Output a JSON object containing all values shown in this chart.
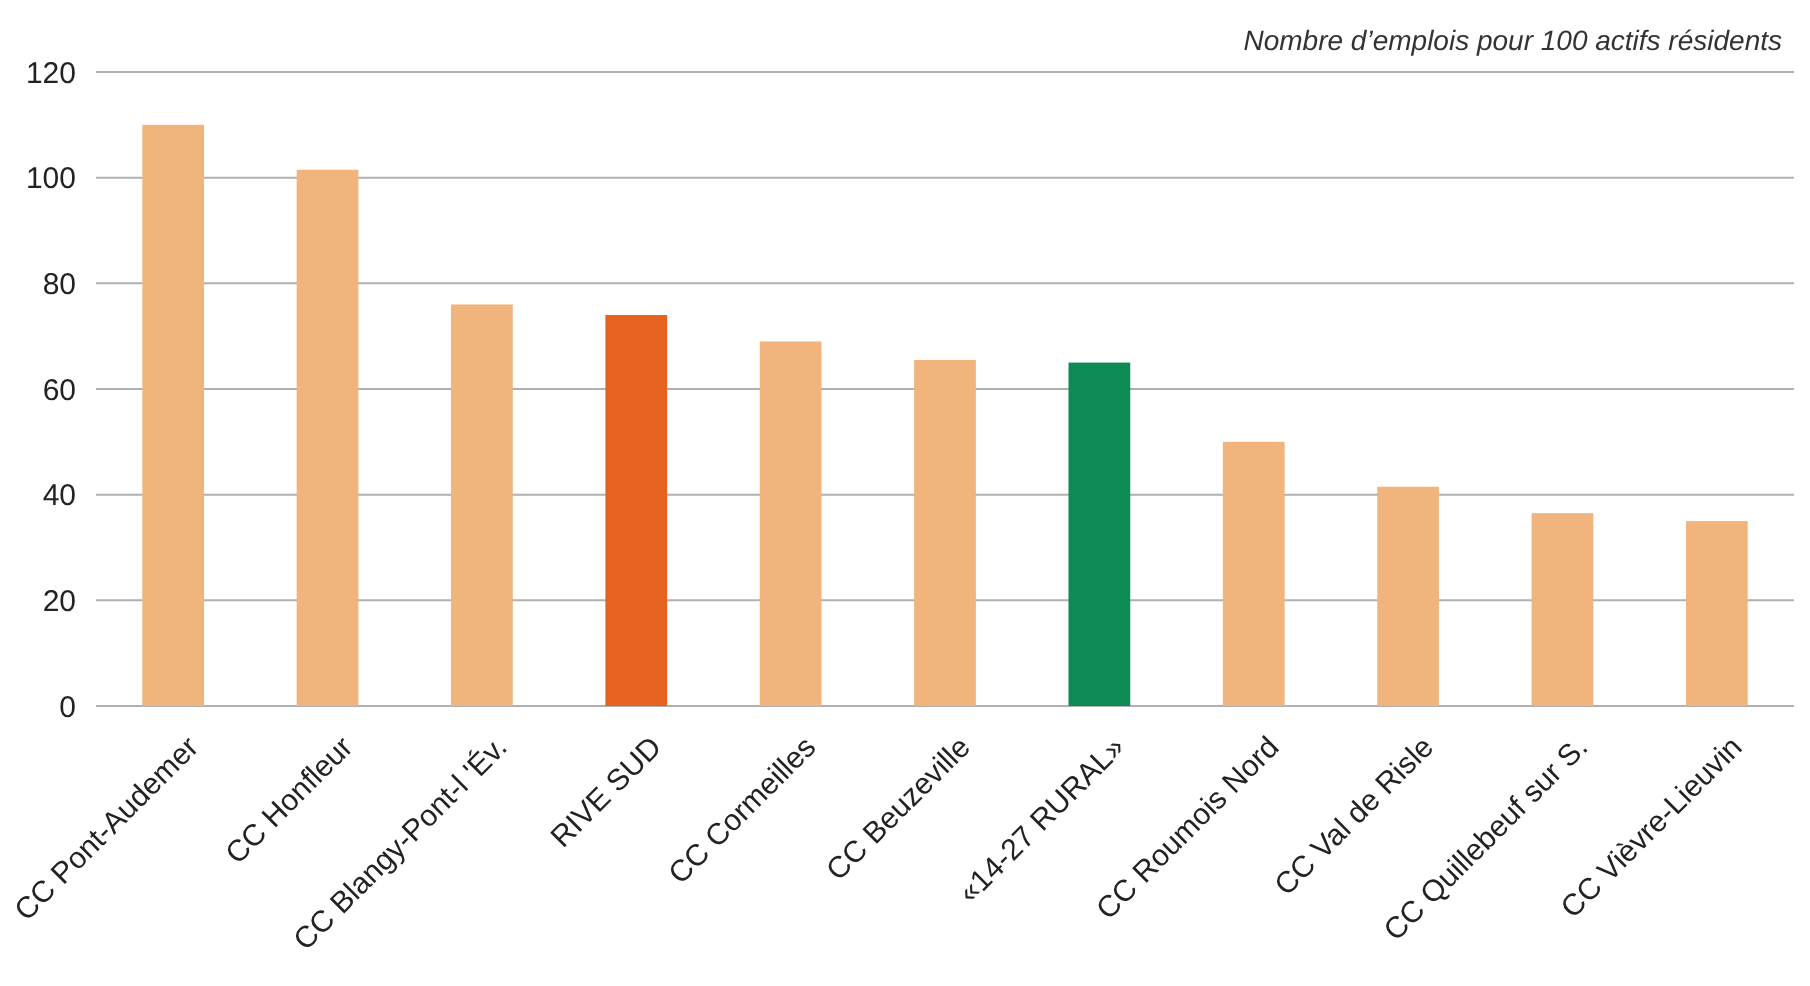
{
  "chart_data": {
    "type": "bar",
    "title": "Nombre d’emplois pour 100 actifs résidents",
    "categories": [
      "CC Pont-Audemer",
      "CC Honfleur",
      "CC Blangy-Pont-l 'Év.",
      "RIVE SUD",
      "CC Cormeilles",
      "CC Beuzeville",
      "«14-27 RURAL»",
      "CC Roumois Nord",
      "CC Val de Risle",
      "CC Quillebeuf sur S.",
      "CC Vièvre-Lieuvin"
    ],
    "values": [
      110,
      101.5,
      76,
      74,
      69,
      65.5,
      65,
      50,
      41.5,
      36.5,
      35
    ],
    "colors": [
      "#f0b47c",
      "#f0b47c",
      "#f0b47c",
      "#e66221",
      "#f0b47c",
      "#f0b47c",
      "#0e8a54",
      "#f0b47c",
      "#f0b47c",
      "#f0b47c",
      "#f0b47c"
    ],
    "ylim": [
      0,
      120
    ],
    "yticks": [
      0,
      20,
      40,
      60,
      80,
      100,
      120
    ],
    "grid": "y"
  }
}
